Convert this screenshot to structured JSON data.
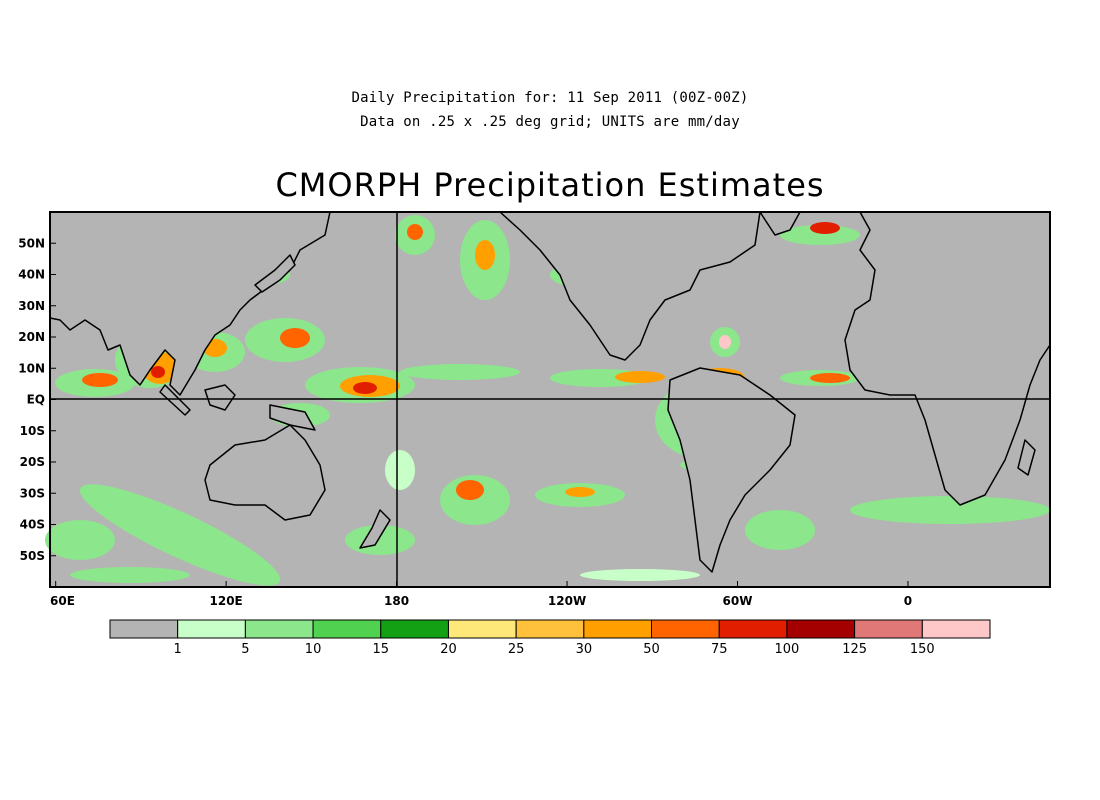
{
  "header": {
    "line1": "Daily Precipitation for: 11 Sep 2011 (00Z-00Z)",
    "line2": "Data on .25 x .25 deg grid; UNITS are mm/day",
    "title": "CMORPH Precipitation Estimates"
  },
  "map": {
    "lon_ticks": [
      {
        "label": "60E",
        "lon": 60
      },
      {
        "label": "120E",
        "lon": 120
      },
      {
        "label": "180",
        "lon": 180
      },
      {
        "label": "120W",
        "lon": 240
      },
      {
        "label": "60W",
        "lon": 300
      },
      {
        "label": "0",
        "lon": 360
      }
    ],
    "lat_ticks": [
      {
        "label": "50N",
        "lat": 50
      },
      {
        "label": "40N",
        "lat": 40
      },
      {
        "label": "30N",
        "lat": 30
      },
      {
        "label": "20N",
        "lat": 20
      },
      {
        "label": "10N",
        "lat": 10
      },
      {
        "label": "EQ",
        "lat": 0
      },
      {
        "label": "10S",
        "lat": -10
      },
      {
        "label": "20S",
        "lat": -20
      },
      {
        "label": "30S",
        "lat": -30
      },
      {
        "label": "40S",
        "lat": -40
      },
      {
        "label": "50S",
        "lat": -50
      }
    ],
    "lon_range": [
      58,
      410
    ],
    "lat_range": [
      -60,
      60
    ],
    "ocean_color": "#b4b4b4"
  },
  "colorbar": {
    "labels": [
      "1",
      "5",
      "10",
      "15",
      "20",
      "25",
      "30",
      "50",
      "75",
      "100",
      "125",
      "150"
    ],
    "colors": [
      "#b4b4b4",
      "#c8ffc8",
      "#8ce68c",
      "#50d250",
      "#14a014",
      "#ffe87a",
      "#ffc03c",
      "#ffa000",
      "#ff6400",
      "#e11e00",
      "#a50000",
      "#e17878",
      "#ffc8c8"
    ]
  }
}
